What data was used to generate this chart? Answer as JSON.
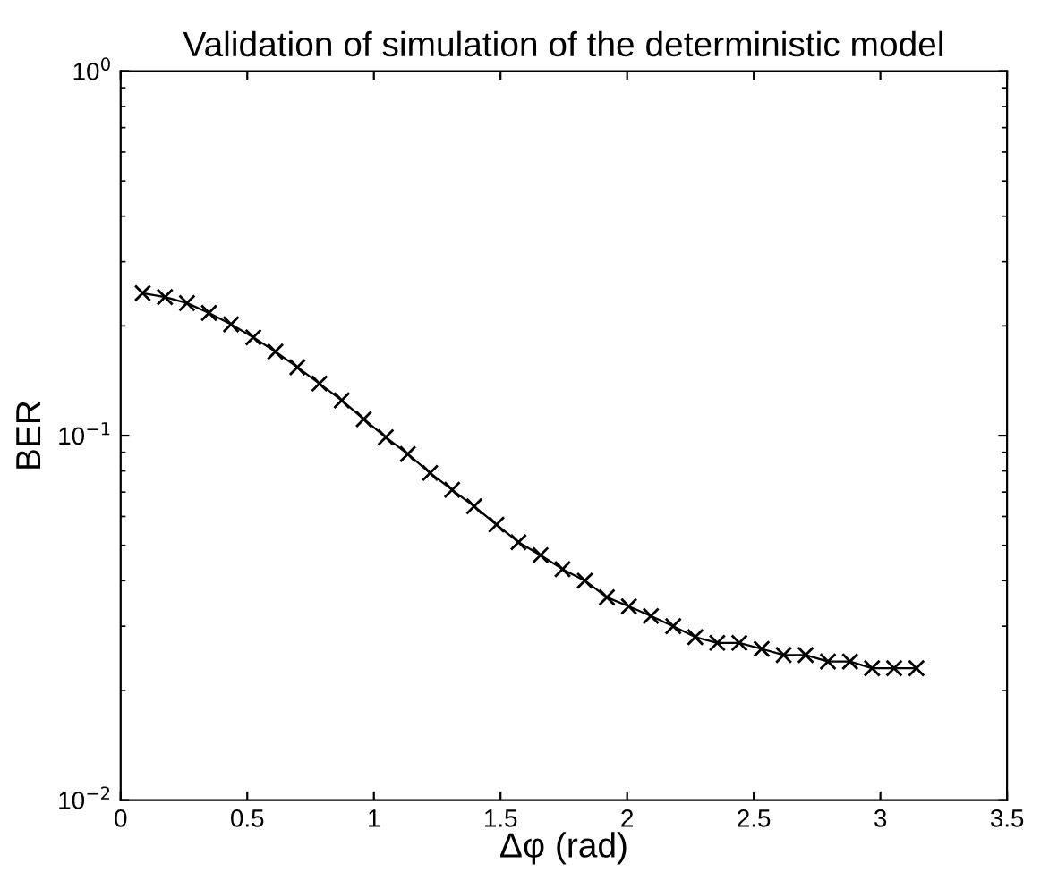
{
  "chart_data": {
    "type": "line",
    "title": "Validation of simulation of the deterministic model",
    "xlabel": "Δφ (rad)",
    "ylabel": "BER",
    "log": "y",
    "grid": false,
    "legend": false,
    "marker": "cross",
    "line_style": "solid",
    "x": [
      0.087,
      0.175,
      0.262,
      0.349,
      0.436,
      0.524,
      0.611,
      0.698,
      0.785,
      0.873,
      0.96,
      1.047,
      1.134,
      1.222,
      1.309,
      1.396,
      1.484,
      1.571,
      1.658,
      1.745,
      1.833,
      1.92,
      2.007,
      2.094,
      2.182,
      2.269,
      2.356,
      2.443,
      2.531,
      2.618,
      2.705,
      2.793,
      2.88,
      2.967,
      3.054,
      3.142
    ],
    "series": [
      {
        "color": "#000000",
        "values": [
          0.246,
          0.24,
          0.231,
          0.217,
          0.202,
          0.186,
          0.17,
          0.154,
          0.139,
          0.125,
          0.111,
          0.099,
          0.089,
          0.079,
          0.071,
          0.064,
          0.057,
          0.051,
          0.047,
          0.043,
          0.04,
          0.036,
          0.034,
          0.032,
          0.03,
          0.028,
          0.027,
          0.027,
          0.026,
          0.025,
          0.025,
          0.024,
          0.024,
          0.023,
          0.023,
          0.023
        ]
      }
    ],
    "xlim": [
      0,
      3.5
    ],
    "xticks": [
      0,
      0.5,
      1,
      1.5,
      2,
      2.5,
      3,
      3.5
    ],
    "ylim": [
      0.01,
      1
    ],
    "yticks": [
      {
        "value": 0.01,
        "label": "10$^{−2}$"
      },
      {
        "value": 0.1,
        "label": "10$^{−1}$"
      },
      {
        "value": 1,
        "label": "10$^{0}$"
      }
    ]
  }
}
